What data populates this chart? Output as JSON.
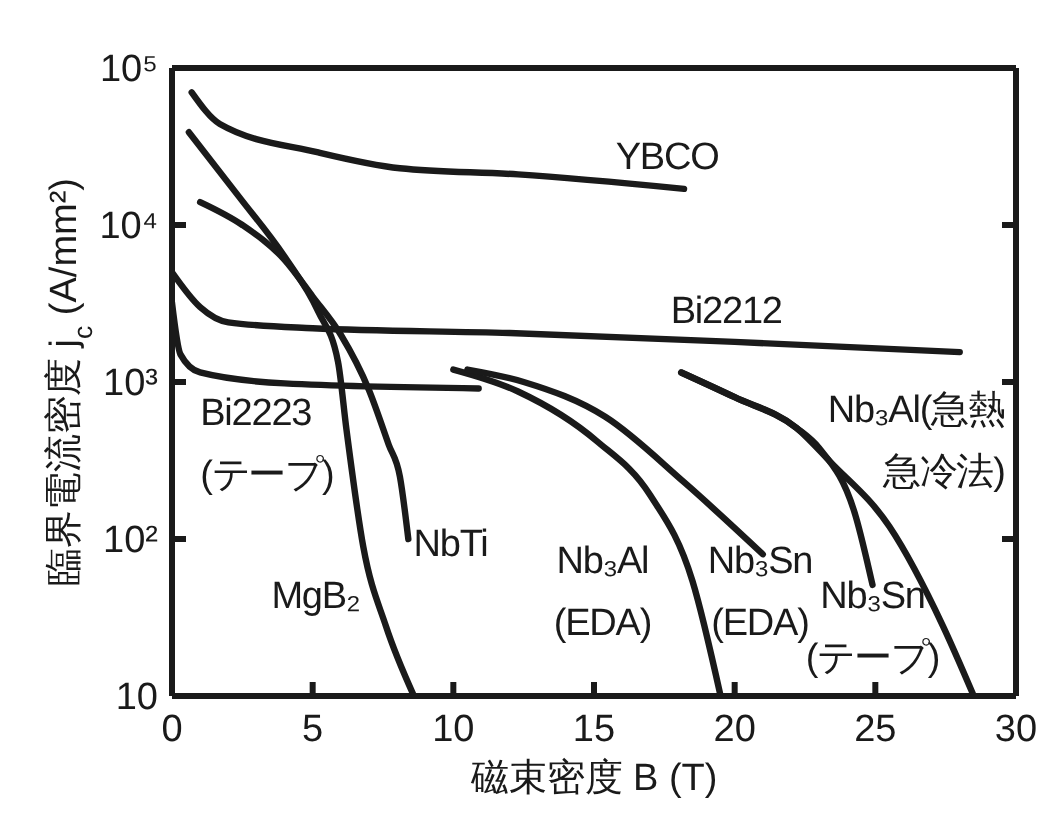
{
  "chart_data": {
    "type": "line",
    "xlabel": "磁束密度 B (T)",
    "ylabel": "臨界電流密度 j$_{c}$ (A/mm²)",
    "log": "y",
    "xlim": [
      0,
      30
    ],
    "xticks": [
      0,
      5,
      10,
      15,
      20,
      25,
      30
    ],
    "ylim": [
      10,
      100000
    ],
    "yticks": [
      10,
      {
        "value": 100,
        "label": "10²"
      },
      {
        "value": 1000,
        "label": "10³"
      },
      {
        "value": 10000,
        "label": "10⁴"
      },
      {
        "value": 100000,
        "label": "10⁵"
      }
    ],
    "marker": "none",
    "series": [
      {
        "name": "YBCO",
        "color": "#1a1a1a",
        "x": [
          0.7,
          1.7,
          5.2,
          8.1,
          12.3,
          18.2
        ],
        "values": [
          70000,
          44000,
          29000,
          23000,
          21000,
          17000
        ]
      },
      {
        "name": "Bi2212",
        "color": "#1a1a1a",
        "x": [
          0,
          1,
          2,
          5,
          12,
          20,
          28
        ],
        "values": [
          5000,
          3000,
          2400,
          2200,
          2050,
          1800,
          1550
        ]
      },
      {
        "name": "Bi2223 (テープ)",
        "color": "#1a1a1a",
        "x": [
          0,
          0.3,
          1,
          4,
          10.9
        ],
        "values": [
          3200,
          1500,
          1150,
          980,
          910
        ]
      },
      {
        "name": "MgB₂",
        "color": "#1a1a1a",
        "x": [
          0.6,
          2.4,
          4,
          5.2,
          5.9,
          6.2,
          6.8,
          7.6,
          8.6
        ],
        "values": [
          39000,
          15000,
          6300,
          2800,
          1350,
          500,
          89,
          28,
          10
        ]
      },
      {
        "name": "NbTi",
        "color": "#1a1a1a",
        "x": [
          1,
          2.5,
          4,
          5,
          6,
          7,
          7.7,
          8.1,
          8.4
        ],
        "values": [
          14000,
          10000,
          6000,
          3500,
          2000,
          890,
          400,
          250,
          100
        ]
      },
      {
        "name": "Nb₃Al (EDA)",
        "color": "#1a1a1a",
        "x": [
          10,
          12.3,
          15.1,
          17,
          18.5,
          19.5
        ],
        "values": [
          1200,
          870,
          420,
          190,
          54,
          10
        ]
      },
      {
        "name": "Nb₃Sn (EDA)",
        "color": "#1a1a1a",
        "x": [
          10.5,
          12.5,
          15.4,
          18.2,
          21
        ],
        "values": [
          1200,
          1000,
          600,
          230,
          80
        ]
      },
      {
        "name": "Nb₃Sn (テープ)",
        "color": "#1a1a1a",
        "x": [
          18.1,
          20,
          22.2,
          23,
          24.3,
          24.9
        ],
        "values": [
          1150,
          800,
          510,
          380,
          140,
          51
        ]
      },
      {
        "name": "Nb₃Al(急熱急冷法)",
        "color": "#1a1a1a",
        "x": [
          18.1,
          20,
          22.2,
          23.4,
          25.5,
          27.4,
          28.5
        ],
        "values": [
          1150,
          800,
          510,
          310,
          120,
          28,
          10
        ]
      }
    ]
  }
}
